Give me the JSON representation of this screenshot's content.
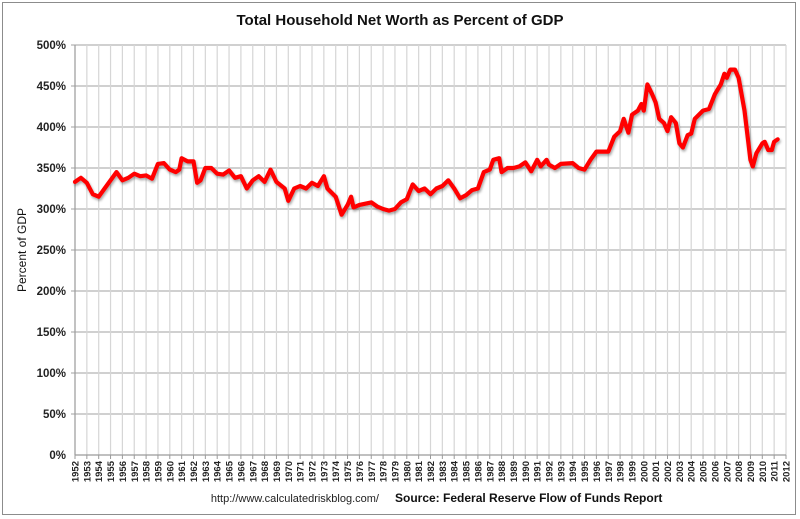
{
  "chart_data": {
    "type": "line",
    "title": "Total Household Net Worth as Percent of GDP",
    "xlabel": "",
    "ylabel": "Percent of GDP",
    "ylim": [
      0,
      500
    ],
    "xlim": [
      1952,
      2012
    ],
    "y_ticks": [
      "0%",
      "50%",
      "100%",
      "150%",
      "200%",
      "250%",
      "300%",
      "350%",
      "400%",
      "450%",
      "500%"
    ],
    "y_tick_values": [
      0,
      50,
      100,
      150,
      200,
      250,
      300,
      350,
      400,
      450,
      500
    ],
    "x_ticks": [
      "1952",
      "1953",
      "1954",
      "1955",
      "1956",
      "1957",
      "1958",
      "1959",
      "1960",
      "1961",
      "1962",
      "1963",
      "1964",
      "1965",
      "1966",
      "1967",
      "1968",
      "1969",
      "1970",
      "1971",
      "1972",
      "1973",
      "1974",
      "1975",
      "1976",
      "1977",
      "1978",
      "1979",
      "1980",
      "1981",
      "1982",
      "1983",
      "1984",
      "1985",
      "1986",
      "1987",
      "1988",
      "1989",
      "1990",
      "1991",
      "1992",
      "1993",
      "1994",
      "1995",
      "1996",
      "1997",
      "1998",
      "1999",
      "2000",
      "2001",
      "2002",
      "2003",
      "2004",
      "2005",
      "2006",
      "2007",
      "2008",
      "2009",
      "2010",
      "2011",
      "2012"
    ],
    "grid": {
      "horizontal": true,
      "vertical": true
    },
    "legend": "none",
    "series": [
      {
        "name": "Household Net Worth as % of GDP",
        "color": "#ff0000",
        "points": [
          [
            1952.0,
            333
          ],
          [
            1952.5,
            338
          ],
          [
            1953.0,
            332
          ],
          [
            1953.5,
            318
          ],
          [
            1954.0,
            315
          ],
          [
            1954.5,
            325
          ],
          [
            1955.0,
            335
          ],
          [
            1955.5,
            345
          ],
          [
            1956.0,
            335
          ],
          [
            1956.5,
            338
          ],
          [
            1957.0,
            343
          ],
          [
            1957.5,
            340
          ],
          [
            1958.0,
            341
          ],
          [
            1958.5,
            337
          ],
          [
            1959.0,
            355
          ],
          [
            1959.5,
            356
          ],
          [
            1960.0,
            348
          ],
          [
            1960.5,
            345
          ],
          [
            1960.8,
            348
          ],
          [
            1961.0,
            362
          ],
          [
            1961.5,
            358
          ],
          [
            1962.0,
            358
          ],
          [
            1962.3,
            332
          ],
          [
            1962.6,
            335
          ],
          [
            1963.0,
            350
          ],
          [
            1963.5,
            350
          ],
          [
            1964.0,
            343
          ],
          [
            1964.5,
            342
          ],
          [
            1965.0,
            347
          ],
          [
            1965.5,
            338
          ],
          [
            1966.0,
            340
          ],
          [
            1966.5,
            325
          ],
          [
            1967.0,
            335
          ],
          [
            1967.5,
            340
          ],
          [
            1968.0,
            333
          ],
          [
            1968.5,
            348
          ],
          [
            1969.0,
            333
          ],
          [
            1969.7,
            325
          ],
          [
            1970.0,
            310
          ],
          [
            1970.5,
            325
          ],
          [
            1971.0,
            328
          ],
          [
            1971.5,
            325
          ],
          [
            1972.0,
            332
          ],
          [
            1972.5,
            328
          ],
          [
            1973.0,
            340
          ],
          [
            1973.3,
            325
          ],
          [
            1974.0,
            315
          ],
          [
            1974.5,
            293
          ],
          [
            1975.0,
            305
          ],
          [
            1975.3,
            315
          ],
          [
            1975.5,
            302
          ],
          [
            1976.0,
            305
          ],
          [
            1977.0,
            308
          ],
          [
            1977.5,
            303
          ],
          [
            1978.0,
            300
          ],
          [
            1978.5,
            298
          ],
          [
            1979.0,
            300
          ],
          [
            1979.5,
            308
          ],
          [
            1980.0,
            312
          ],
          [
            1980.5,
            330
          ],
          [
            1981.0,
            322
          ],
          [
            1981.5,
            325
          ],
          [
            1982.0,
            318
          ],
          [
            1982.5,
            325
          ],
          [
            1983.0,
            328
          ],
          [
            1983.5,
            335
          ],
          [
            1984.0,
            325
          ],
          [
            1984.5,
            313
          ],
          [
            1985.0,
            317
          ],
          [
            1985.5,
            323
          ],
          [
            1986.0,
            325
          ],
          [
            1986.5,
            345
          ],
          [
            1987.0,
            348
          ],
          [
            1987.3,
            360
          ],
          [
            1987.8,
            362
          ],
          [
            1988.0,
            345
          ],
          [
            1988.5,
            350
          ],
          [
            1989.0,
            350
          ],
          [
            1989.5,
            352
          ],
          [
            1990.0,
            357
          ],
          [
            1990.5,
            346
          ],
          [
            1991.0,
            360
          ],
          [
            1991.3,
            352
          ],
          [
            1991.8,
            360
          ],
          [
            1992.0,
            354
          ],
          [
            1992.5,
            350
          ],
          [
            1993.0,
            355
          ],
          [
            1994.0,
            356
          ],
          [
            1994.5,
            350
          ],
          [
            1995.0,
            348
          ],
          [
            1995.5,
            360
          ],
          [
            1996.0,
            370
          ],
          [
            1997.0,
            370
          ],
          [
            1997.5,
            388
          ],
          [
            1998.0,
            395
          ],
          [
            1998.3,
            410
          ],
          [
            1998.7,
            393
          ],
          [
            1999.0,
            415
          ],
          [
            1999.5,
            420
          ],
          [
            1999.8,
            428
          ],
          [
            2000.0,
            420
          ],
          [
            2000.3,
            452
          ],
          [
            2000.7,
            440
          ],
          [
            2001.0,
            430
          ],
          [
            2001.3,
            410
          ],
          [
            2001.7,
            405
          ],
          [
            2002.0,
            395
          ],
          [
            2002.3,
            412
          ],
          [
            2002.7,
            405
          ],
          [
            2003.0,
            380
          ],
          [
            2003.3,
            375
          ],
          [
            2003.7,
            390
          ],
          [
            2004.0,
            392
          ],
          [
            2004.3,
            410
          ],
          [
            2005.0,
            420
          ],
          [
            2005.5,
            422
          ],
          [
            2006.0,
            440
          ],
          [
            2006.5,
            452
          ],
          [
            2006.8,
            465
          ],
          [
            2007.0,
            460
          ],
          [
            2007.3,
            470
          ],
          [
            2007.7,
            470
          ],
          [
            2008.0,
            460
          ],
          [
            2008.5,
            420
          ],
          [
            2009.0,
            360
          ],
          [
            2009.2,
            352
          ],
          [
            2009.5,
            368
          ],
          [
            2010.0,
            380
          ],
          [
            2010.2,
            382
          ],
          [
            2010.5,
            372
          ],
          [
            2010.8,
            372
          ],
          [
            2011.0,
            382
          ],
          [
            2011.3,
            385
          ]
        ]
      }
    ],
    "annotations": {
      "url": "http://www.calculatedriskblog.com/",
      "source": "Source: Federal Reserve Flow of Funds Report"
    }
  },
  "colors": {
    "line": "#ff0000",
    "grid": "#c8c8c8",
    "frame": "#8c8c8c"
  }
}
